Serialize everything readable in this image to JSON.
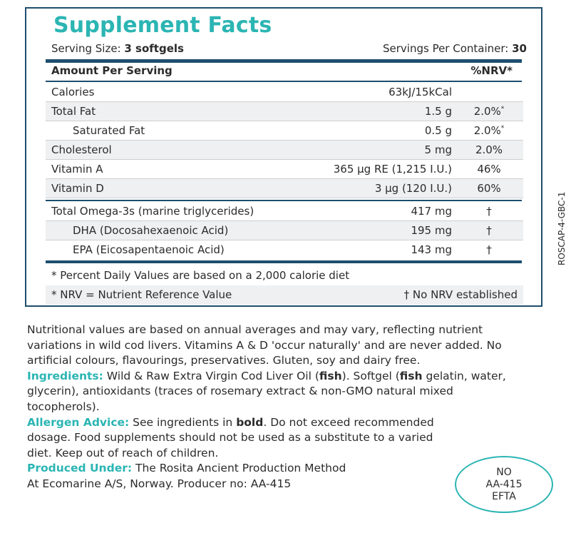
{
  "panel": {
    "title": "Supplement Facts",
    "serving_size_label": "Serving Size:",
    "serving_size_value": "3 softgels",
    "servings_per_container_label": "Servings Per Container:",
    "servings_per_container_value": "30",
    "header_left": "Amount Per Serving",
    "header_right": "%NRV*",
    "rows": [
      {
        "name": "Calories",
        "amount": "63kJ/15kCal",
        "nrv": "",
        "nrv_mark": ""
      },
      {
        "name": "Total Fat",
        "amount": "1.5 g",
        "nrv": "2.0%",
        "nrv_mark": "*"
      },
      {
        "name": "Saturated Fat",
        "amount": "0.5 g",
        "nrv": "2.0%",
        "nrv_mark": "*"
      },
      {
        "name": "Cholesterol",
        "amount": "5 mg",
        "nrv": "2.0%",
        "nrv_mark": ""
      },
      {
        "name": "Vitamin A",
        "amount": "365 µg RE  (1,215 I.U.)",
        "nrv": "46%",
        "nrv_mark": ""
      },
      {
        "name": "Vitamin D",
        "amount": "3 µg (120 I.U.)",
        "nrv": "60%",
        "nrv_mark": ""
      },
      {
        "name": "Total Omega-3s (marine triglycerides)",
        "amount": "417 mg",
        "nrv": "†",
        "nrv_mark": ""
      },
      {
        "name": "DHA (Docosahexaenoic Acid)",
        "amount": "195 mg",
        "nrv": "†",
        "nrv_mark": ""
      },
      {
        "name": "EPA (Eicosapentaenoic Acid)",
        "amount": "143 mg",
        "nrv": "†",
        "nrv_mark": ""
      }
    ],
    "footnote_1": "* Percent Daily Values are based on a 2,000 calorie diet",
    "footnote_2_left": "* NRV = Nutrient Reference Value",
    "footnote_2_right": "† No NRV established"
  },
  "side_code": "ROSCAP-4-GBC-1",
  "body": {
    "intro": "Nutritional values are based on annual averages and may vary, reflecting nutrient variations in wild cod livers. Vitamins A & D 'occur naturally' and are never added. No artificial colours, flavourings, preservatives. Gluten, soy and dairy free.",
    "ingredients_label": "Ingredients:",
    "ingredients_1": " Wild & Raw Extra Virgin Cod Liver Oil (",
    "ingredients_fish_1": "fish",
    "ingredients_2": "). Softgel (",
    "ingredients_fish_2": "fish",
    "ingredients_3": " gelatin, water, glycerin), antioxidants (traces of rosemary extract & non-GMO natural mixed tocopherols).",
    "allergen_label": "Allergen Advice:",
    "allergen_1": " See ingredients in ",
    "allergen_bold": "bold",
    "allergen_2": ". Do not exceed recommended dosage. Food supplements should not be used as a substitute to a varied diet. Keep out of reach of children.",
    "produced_label": "Produced Under:",
    "produced_1": " The Rosita Ancient Production Method",
    "produced_2": "At Ecomarine A/S, Norway. Producer no: AA-415"
  },
  "badge": {
    "line1": "NO",
    "line2": "AA-415",
    "line3": "EFTA"
  },
  "colors": {
    "accent": "#2bb5b3",
    "border": "#1e4e6e",
    "row_shade": "#eef0f1"
  }
}
